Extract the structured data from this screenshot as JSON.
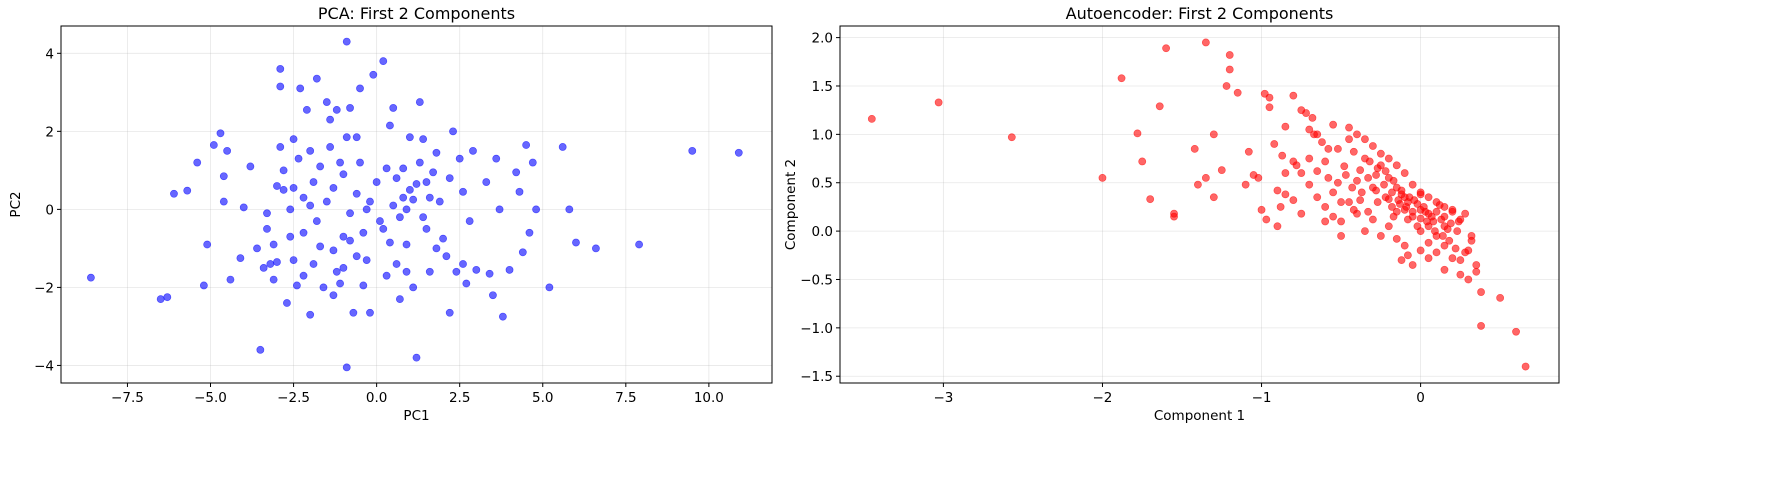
{
  "chart_data": [
    {
      "type": "scatter",
      "title": "PCA: First 2 Components",
      "xlabel": "PC1",
      "ylabel": "PC2",
      "xlim": [
        -9.5,
        11.9
      ],
      "ylim": [
        -4.45,
        4.7
      ],
      "xticks": [
        -7.5,
        -5.0,
        -2.5,
        0.0,
        2.5,
        5.0,
        7.5,
        10.0
      ],
      "xtick_labels": [
        "−7.5",
        "−5.0",
        "−2.5",
        "0.0",
        "2.5",
        "5.0",
        "7.5",
        "10.0"
      ],
      "yticks": [
        -4,
        -2,
        0,
        2,
        4
      ],
      "ytick_labels": [
        "−4",
        "−2",
        "0",
        "2",
        "4"
      ],
      "grid": true,
      "color": "#0000ff",
      "points": [
        [
          -8.6,
          -1.75
        ],
        [
          -6.5,
          -2.3
        ],
        [
          -6.3,
          -2.25
        ],
        [
          -6.1,
          0.4
        ],
        [
          -5.7,
          0.48
        ],
        [
          -5.4,
          1.2
        ],
        [
          -5.2,
          -1.95
        ],
        [
          -5.1,
          -0.9
        ],
        [
          -4.9,
          1.65
        ],
        [
          -4.7,
          1.95
        ],
        [
          -4.6,
          0.85
        ],
        [
          -4.5,
          1.5
        ],
        [
          -4.6,
          0.2
        ],
        [
          -4.4,
          -1.8
        ],
        [
          -4.1,
          -1.25
        ],
        [
          -4.0,
          0.05
        ],
        [
          -3.8,
          1.1
        ],
        [
          -3.5,
          -3.6
        ],
        [
          -3.4,
          -1.5
        ],
        [
          -3.3,
          -0.5
        ],
        [
          -3.3,
          -0.1
        ],
        [
          -3.2,
          -1.4
        ],
        [
          -3.1,
          -1.8
        ],
        [
          -3.0,
          0.6
        ],
        [
          -3.0,
          -1.35
        ],
        [
          -2.9,
          1.6
        ],
        [
          -2.9,
          3.6
        ],
        [
          -2.9,
          3.15
        ],
        [
          -2.8,
          1.0
        ],
        [
          -2.8,
          0.5
        ],
        [
          -2.7,
          -2.4
        ],
        [
          -2.6,
          -0.7
        ],
        [
          -2.5,
          1.8
        ],
        [
          -2.5,
          0.55
        ],
        [
          -2.4,
          -1.95
        ],
        [
          -2.35,
          1.3
        ],
        [
          -2.3,
          3.1
        ],
        [
          -2.2,
          0.3
        ],
        [
          -2.2,
          -0.6
        ],
        [
          -2.1,
          2.55
        ],
        [
          -2.0,
          1.5
        ],
        [
          -2.0,
          0.1
        ],
        [
          -1.9,
          -1.4
        ],
        [
          -1.8,
          -0.3
        ],
        [
          -1.8,
          3.35
        ],
        [
          -1.7,
          1.1
        ],
        [
          -1.6,
          -2.0
        ],
        [
          -1.5,
          2.75
        ],
        [
          -1.4,
          2.3
        ],
        [
          -1.4,
          1.6
        ],
        [
          -1.3,
          0.55
        ],
        [
          -1.3,
          -1.05
        ],
        [
          -1.2,
          2.55
        ],
        [
          -1.1,
          1.2
        ],
        [
          -1.0,
          -1.5
        ],
        [
          -1.0,
          -0.7
        ],
        [
          -0.9,
          1.85
        ],
        [
          -0.8,
          2.6
        ],
        [
          -0.8,
          -0.8
        ],
        [
          -0.7,
          -2.65
        ],
        [
          -0.6,
          0.4
        ],
        [
          -0.6,
          1.85
        ],
        [
          -0.5,
          3.1
        ],
        [
          -0.4,
          -1.95
        ],
        [
          -0.3,
          0.0
        ],
        [
          -0.2,
          -2.65
        ],
        [
          -0.1,
          3.45
        ],
        [
          0.0,
          0.7
        ],
        [
          0.2,
          3.8
        ],
        [
          0.3,
          1.05
        ],
        [
          0.4,
          2.15
        ],
        [
          0.4,
          -0.85
        ],
        [
          0.5,
          0.1
        ],
        [
          0.6,
          -1.4
        ],
        [
          0.7,
          -0.2
        ],
        [
          0.8,
          1.05
        ],
        [
          0.9,
          -1.6
        ],
        [
          1.0,
          0.5
        ],
        [
          1.1,
          -2.0
        ],
        [
          1.1,
          0.25
        ],
        [
          1.2,
          0.65
        ],
        [
          1.3,
          2.75
        ],
        [
          1.4,
          1.8
        ],
        [
          1.5,
          -0.5
        ],
        [
          1.6,
          -1.6
        ],
        [
          1.7,
          0.95
        ],
        [
          1.8,
          1.45
        ],
        [
          1.9,
          0.2
        ],
        [
          2.0,
          -0.75
        ],
        [
          2.2,
          -2.65
        ],
        [
          2.3,
          2.0
        ],
        [
          2.4,
          -1.6
        ],
        [
          2.5,
          1.3
        ],
        [
          2.6,
          0.45
        ],
        [
          2.7,
          -1.9
        ],
        [
          3.0,
          -1.55
        ],
        [
          3.4,
          -1.65
        ],
        [
          3.5,
          -2.2
        ],
        [
          3.6,
          1.3
        ],
        [
          3.7,
          0.0
        ],
        [
          3.8,
          -2.75
        ],
        [
          4.0,
          -1.55
        ],
        [
          4.2,
          0.95
        ],
        [
          4.3,
          0.45
        ],
        [
          4.5,
          1.65
        ],
        [
          4.6,
          -0.6
        ],
        [
          4.7,
          1.2
        ],
        [
          4.8,
          0.0
        ],
        [
          5.2,
          -2.0
        ],
        [
          5.6,
          1.6
        ],
        [
          5.8,
          0.0
        ],
        [
          6.0,
          -0.85
        ],
        [
          6.6,
          -1.0
        ],
        [
          7.9,
          -0.9
        ],
        [
          9.5,
          1.5
        ],
        [
          10.9,
          1.45
        ],
        [
          1.2,
          -3.8
        ],
        [
          -0.9,
          4.3
        ],
        [
          -0.9,
          -4.05
        ],
        [
          -2.5,
          -1.3
        ],
        [
          -1.7,
          -0.95
        ],
        [
          -1.2,
          -1.6
        ],
        [
          -0.3,
          -1.3
        ],
        [
          0.2,
          -0.5
        ],
        [
          0.9,
          -0.9
        ],
        [
          1.6,
          0.3
        ],
        [
          2.1,
          -1.2
        ],
        [
          2.8,
          -0.3
        ],
        [
          3.3,
          0.7
        ],
        [
          -0.5,
          1.2
        ],
        [
          0.6,
          0.8
        ],
        [
          1.0,
          1.85
        ],
        [
          -1.5,
          0.2
        ],
        [
          -2.2,
          -1.7
        ],
        [
          -3.1,
          -0.9
        ],
        [
          -0.8,
          -0.1
        ],
        [
          0.3,
          -1.7
        ],
        [
          1.8,
          -1.0
        ],
        [
          2.9,
          1.5
        ],
        [
          0.5,
          2.6
        ],
        [
          -0.2,
          0.2
        ],
        [
          0.1,
          -0.3
        ],
        [
          0.8,
          0.3
        ],
        [
          1.4,
          -0.2
        ],
        [
          -0.6,
          -1.2
        ],
        [
          -1.0,
          0.9
        ],
        [
          -2.6,
          0.0
        ],
        [
          -1.9,
          0.7
        ],
        [
          -1.3,
          -2.2
        ],
        [
          1.3,
          1.2
        ],
        [
          2.2,
          0.8
        ],
        [
          0.7,
          -2.3
        ],
        [
          -0.4,
          -0.6
        ],
        [
          0.9,
          0.0
        ],
        [
          1.5,
          0.7
        ],
        [
          -2.0,
          -2.7
        ],
        [
          -3.6,
          -1.0
        ],
        [
          2.6,
          -1.4
        ],
        [
          4.4,
          -1.1
        ],
        [
          -1.1,
          -1.9
        ]
      ]
    },
    {
      "type": "scatter",
      "title": "Autoencoder: First 2 Components",
      "xlabel": "Component 1",
      "ylabel": "Component 2",
      "xlim": [
        -3.65,
        0.87
      ],
      "ylim": [
        -1.57,
        2.12
      ],
      "xticks": [
        -3,
        -2,
        -1,
        0
      ],
      "xtick_labels": [
        "−3",
        "−2",
        "−1",
        "0"
      ],
      "yticks": [
        -1.5,
        -1.0,
        -0.5,
        0.0,
        0.5,
        1.0,
        1.5,
        2.0
      ],
      "ytick_labels": [
        "−1.5",
        "−1.0",
        "−0.5",
        "0.0",
        "0.5",
        "1.0",
        "1.5",
        "2.0"
      ],
      "grid": true,
      "color": "#ff0000",
      "points": [
        [
          -3.45,
          1.16
        ],
        [
          -3.03,
          1.33
        ],
        [
          -2.57,
          0.97
        ],
        [
          -2.0,
          0.55
        ],
        [
          -1.55,
          0.18
        ],
        [
          -1.7,
          0.33
        ],
        [
          -1.75,
          0.72
        ],
        [
          -1.78,
          1.01
        ],
        [
          -1.88,
          1.58
        ],
        [
          -1.64,
          1.29
        ],
        [
          -1.6,
          1.89
        ],
        [
          -1.35,
          1.95
        ],
        [
          -1.3,
          0.35
        ],
        [
          -1.25,
          0.63
        ],
        [
          -1.22,
          1.5
        ],
        [
          -1.2,
          1.67
        ],
        [
          -1.2,
          1.82
        ],
        [
          -1.15,
          1.43
        ],
        [
          -1.08,
          0.82
        ],
        [
          -1.05,
          0.58
        ],
        [
          -1.0,
          0.22
        ],
        [
          -0.98,
          1.42
        ],
        [
          -0.95,
          1.38
        ],
        [
          -0.9,
          0.42
        ],
        [
          -0.88,
          0.25
        ],
        [
          -0.85,
          0.6
        ],
        [
          -0.8,
          1.4
        ],
        [
          -0.78,
          0.68
        ],
        [
          -0.75,
          1.25
        ],
        [
          -0.72,
          1.22
        ],
        [
          -0.7,
          1.05
        ],
        [
          -0.68,
          1.17
        ],
        [
          -0.65,
          1.0
        ],
        [
          -0.62,
          0.92
        ],
        [
          -0.6,
          0.72
        ],
        [
          -0.58,
          0.55
        ],
        [
          -0.55,
          0.4
        ],
        [
          -0.52,
          0.85
        ],
        [
          -0.5,
          0.1
        ],
        [
          -0.48,
          0.67
        ],
        [
          -0.45,
          0.95
        ],
        [
          -0.42,
          0.82
        ],
        [
          -0.4,
          0.52
        ],
        [
          -0.38,
          0.63
        ],
        [
          -0.35,
          0.75
        ],
        [
          -0.33,
          0.2
        ],
        [
          -0.3,
          0.45
        ],
        [
          -0.28,
          0.58
        ],
        [
          -0.25,
          0.68
        ],
        [
          -0.22,
          0.35
        ],
        [
          -0.2,
          0.55
        ],
        [
          -0.18,
          0.25
        ],
        [
          -0.15,
          0.45
        ],
        [
          -0.12,
          0.38
        ],
        [
          -0.1,
          0.22
        ],
        [
          -0.08,
          0.3
        ],
        [
          -0.05,
          0.15
        ],
        [
          -0.02,
          0.05
        ],
        [
          0.0,
          0.38
        ],
        [
          0.02,
          0.25
        ],
        [
          0.05,
          0.18
        ],
        [
          0.08,
          0.1
        ],
        [
          0.1,
          -0.05
        ],
        [
          0.12,
          0.27
        ],
        [
          0.15,
          0.05
        ],
        [
          0.18,
          -0.1
        ],
        [
          0.2,
          0.22
        ],
        [
          0.22,
          -0.18
        ],
        [
          0.25,
          -0.3
        ],
        [
          0.28,
          0.18
        ],
        [
          0.3,
          -0.2
        ],
        [
          0.32,
          -0.05
        ],
        [
          0.35,
          -0.35
        ],
        [
          0.38,
          -0.63
        ],
        [
          0.38,
          -0.98
        ],
        [
          0.5,
          -0.69
        ],
        [
          0.6,
          -1.04
        ],
        [
          0.66,
          -1.4
        ],
        [
          0.15,
          -0.4
        ],
        [
          0.05,
          -0.28
        ],
        [
          -0.05,
          -0.35
        ],
        [
          -0.1,
          -0.15
        ],
        [
          -0.15,
          -0.08
        ],
        [
          -0.2,
          0.05
        ],
        [
          -0.25,
          -0.05
        ],
        [
          -0.3,
          0.12
        ],
        [
          -0.35,
          0.0
        ],
        [
          -0.4,
          0.18
        ],
        [
          -0.45,
          0.3
        ],
        [
          -0.5,
          -0.05
        ],
        [
          -0.55,
          0.15
        ],
        [
          -0.6,
          0.25
        ],
        [
          -0.65,
          0.35
        ],
        [
          -0.7,
          0.48
        ],
        [
          -0.75,
          0.18
        ],
        [
          -0.8,
          0.32
        ],
        [
          -0.85,
          0.38
        ],
        [
          -0.9,
          0.05
        ],
        [
          -0.92,
          0.9
        ],
        [
          -0.95,
          1.28
        ],
        [
          -1.02,
          0.55
        ],
        [
          -1.1,
          0.48
        ],
        [
          -1.35,
          0.55
        ],
        [
          -1.4,
          0.48
        ],
        [
          -1.42,
          0.85
        ],
        [
          -0.97,
          0.12
        ],
        [
          -0.87,
          0.78
        ],
        [
          -0.67,
          1.0
        ],
        [
          -0.55,
          1.1
        ],
        [
          -0.45,
          1.07
        ],
        [
          -0.4,
          1.0
        ],
        [
          -0.35,
          0.95
        ],
        [
          -0.3,
          0.88
        ],
        [
          -0.25,
          0.8
        ],
        [
          -0.2,
          0.75
        ],
        [
          -0.15,
          0.68
        ],
        [
          -0.1,
          0.6
        ],
        [
          -0.05,
          0.48
        ],
        [
          0.0,
          0.4
        ],
        [
          0.05,
          0.35
        ],
        [
          0.1,
          0.3
        ],
        [
          0.15,
          0.25
        ],
        [
          0.2,
          0.2
        ],
        [
          0.25,
          0.12
        ],
        [
          -0.32,
          0.72
        ],
        [
          -0.27,
          0.65
        ],
        [
          -0.22,
          0.62
        ],
        [
          -0.17,
          0.52
        ],
        [
          -0.12,
          0.42
        ],
        [
          -0.07,
          0.35
        ],
        [
          -0.02,
          0.28
        ],
        [
          0.03,
          0.2
        ],
        [
          0.07,
          0.15
        ],
        [
          0.13,
          0.12
        ],
        [
          0.17,
          0.02
        ],
        [
          0.23,
          0.0
        ],
        [
          -0.6,
          0.1
        ],
        [
          -0.5,
          0.3
        ],
        [
          -0.42,
          0.22
        ],
        [
          -0.37,
          0.4
        ],
        [
          -0.27,
          0.3
        ],
        [
          -0.17,
          0.15
        ],
        [
          -0.13,
          0.28
        ],
        [
          -0.08,
          0.12
        ],
        [
          0.0,
          0.0
        ],
        [
          0.05,
          -0.12
        ],
        [
          0.1,
          -0.22
        ],
        [
          0.15,
          -0.15
        ],
        [
          0.2,
          -0.28
        ],
        [
          0.25,
          -0.45
        ],
        [
          0.3,
          -0.5
        ],
        [
          0.35,
          -0.42
        ],
        [
          -0.2,
          0.33
        ],
        [
          -0.15,
          0.2
        ],
        [
          -0.1,
          0.35
        ],
        [
          -0.05,
          0.2
        ],
        [
          0.0,
          0.13
        ],
        [
          0.05,
          0.05
        ],
        [
          0.1,
          0.2
        ],
        [
          0.15,
          0.15
        ],
        [
          -0.7,
          0.75
        ],
        [
          -0.65,
          0.62
        ],
        [
          -0.58,
          0.85
        ],
        [
          -0.52,
          0.5
        ],
        [
          -0.47,
          0.58
        ],
        [
          -0.43,
          0.45
        ],
        [
          -0.38,
          0.32
        ],
        [
          -0.33,
          0.55
        ],
        [
          -0.28,
          0.42
        ],
        [
          -0.23,
          0.48
        ],
        [
          -0.18,
          0.4
        ],
        [
          -0.14,
          0.32
        ],
        [
          -0.09,
          0.25
        ],
        [
          -0.04,
          0.32
        ],
        [
          0.0,
          0.22
        ],
        [
          0.04,
          0.1
        ],
        [
          0.09,
          0.0
        ],
        [
          0.14,
          -0.05
        ],
        [
          0.19,
          0.08
        ],
        [
          0.24,
          0.1
        ],
        [
          -1.55,
          0.15
        ],
        [
          -1.3,
          1.0
        ],
        [
          -0.85,
          1.08
        ],
        [
          -0.8,
          0.72
        ],
        [
          -0.75,
          0.6
        ],
        [
          -0.12,
          -0.3
        ],
        [
          -0.08,
          -0.25
        ],
        [
          0.0,
          -0.2
        ],
        [
          0.28,
          -0.22
        ],
        [
          0.32,
          -0.1
        ]
      ]
    }
  ]
}
